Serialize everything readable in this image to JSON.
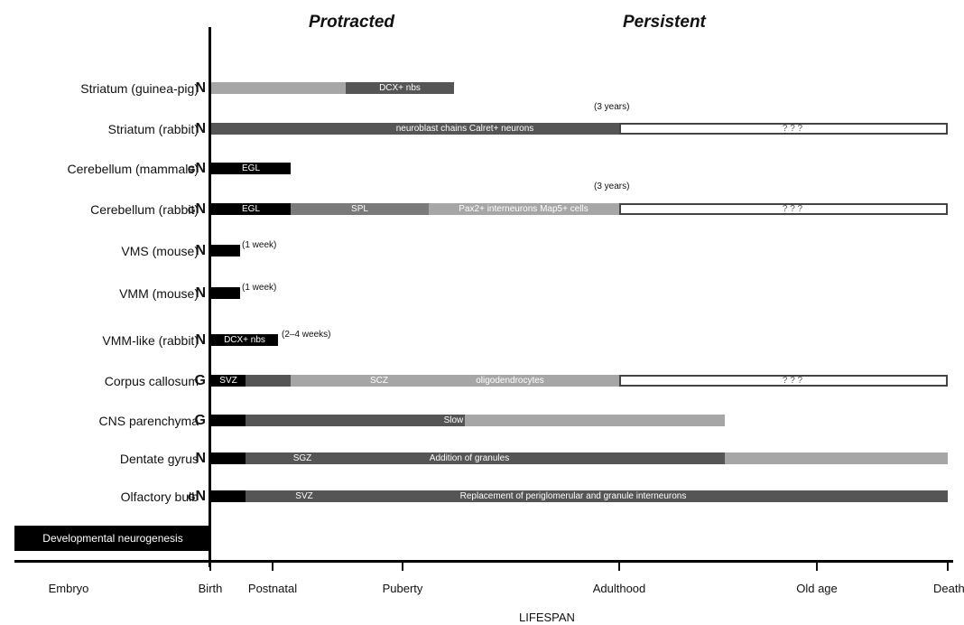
{
  "phases": {
    "protracted": "Protracted",
    "persistent": "Persistent"
  },
  "rows": [
    {
      "label": "Striatum (guinea-pig)",
      "type_prefix": "",
      "type": "N",
      "segments": [
        {
          "color": "#a6a6a6",
          "text": ""
        },
        {
          "color": "#555555",
          "text": "DCX+ nbs"
        }
      ],
      "note": ""
    },
    {
      "label": "Striatum (rabbit)",
      "type_prefix": "",
      "type": "N",
      "segments": [
        {
          "color": "#555555",
          "text": "neuroblast chains   Calret+ neurons"
        },
        {
          "color": "#ffffff",
          "text": "? ? ?",
          "outlined": true
        }
      ],
      "note": "(3 years)"
    },
    {
      "label": "Cerebellum (mammals)",
      "type_prefix": "G",
      "type": "N",
      "segments": [
        {
          "color": "#000000",
          "text": "EGL"
        }
      ],
      "note": ""
    },
    {
      "label": "Cerebellum (rabbit)",
      "type_prefix": "G",
      "type": "N",
      "segments": [
        {
          "color": "#000000",
          "text": "EGL"
        },
        {
          "color": "#7a7a7a",
          "text": "SPL"
        },
        {
          "color": "#a6a6a6",
          "text": "Pax2+ interneurons  Map5+ cells"
        },
        {
          "color": "#ffffff",
          "text": "? ? ?",
          "outlined": true
        }
      ],
      "note": "(3 years)"
    },
    {
      "label": "VMS (mouse)",
      "type_prefix": "",
      "type": "N",
      "segments": [
        {
          "color": "#000000",
          "text": ""
        }
      ],
      "note": "(1 week)"
    },
    {
      "label": "VMM (mouse)",
      "type_prefix": "",
      "type": "N",
      "segments": [
        {
          "color": "#000000",
          "text": ""
        }
      ],
      "note": "(1 week)"
    },
    {
      "label": "VMM-like (rabbit)",
      "type_prefix": "",
      "type": "N",
      "segments": [
        {
          "color": "#000000",
          "text": "DCX+ nbs"
        }
      ],
      "note": "(2–4 weeks)"
    },
    {
      "label": "Corpus callosum",
      "type_prefix": "",
      "type": "G",
      "segments": [
        {
          "color": "#000000",
          "text": "SVZ"
        },
        {
          "color": "#555555",
          "text": ""
        },
        {
          "color": "#a6a6a6",
          "text": "SCZ"
        },
        {
          "color": "#a6a6a6",
          "text": "oligodendrocytes"
        },
        {
          "color": "#ffffff",
          "text": "? ? ?",
          "outlined": true
        }
      ],
      "note": ""
    },
    {
      "label": "CNS parenchyma",
      "type_prefix": "",
      "type": "G",
      "segments": [
        {
          "color": "#000000",
          "text": ""
        },
        {
          "color": "#555555",
          "text": "Slow  renewal  of  oligodendrocytes   and   astrocytes"
        },
        {
          "color": "#a6a6a6",
          "text": ""
        }
      ],
      "note": ""
    },
    {
      "label": "Dentate gyrus",
      "type_prefix": "",
      "type": "N",
      "segments": [
        {
          "color": "#000000",
          "text": ""
        },
        {
          "color": "#555555",
          "text": "SGZ"
        },
        {
          "color": "#555555",
          "text": "Addition  of  granules"
        },
        {
          "color": "#a6a6a6",
          "text": ""
        }
      ],
      "note": ""
    },
    {
      "label": "Olfactory bulb",
      "type_prefix": "G",
      "type": "N",
      "segments": [
        {
          "color": "#000000",
          "text": ""
        },
        {
          "color": "#555555",
          "text": "SVZ"
        },
        {
          "color": "#555555",
          "text": "Replacement  of  periglomerular  and  granule  interneurons"
        }
      ],
      "note": ""
    }
  ],
  "developmental": "Developmental neurogenesis",
  "axis": {
    "ticks": [
      "Embryo",
      "Birth",
      "Postnatal",
      "Puberty",
      "Adulthood",
      "Old age",
      "Death"
    ],
    "title": "LIFESPAN"
  }
}
